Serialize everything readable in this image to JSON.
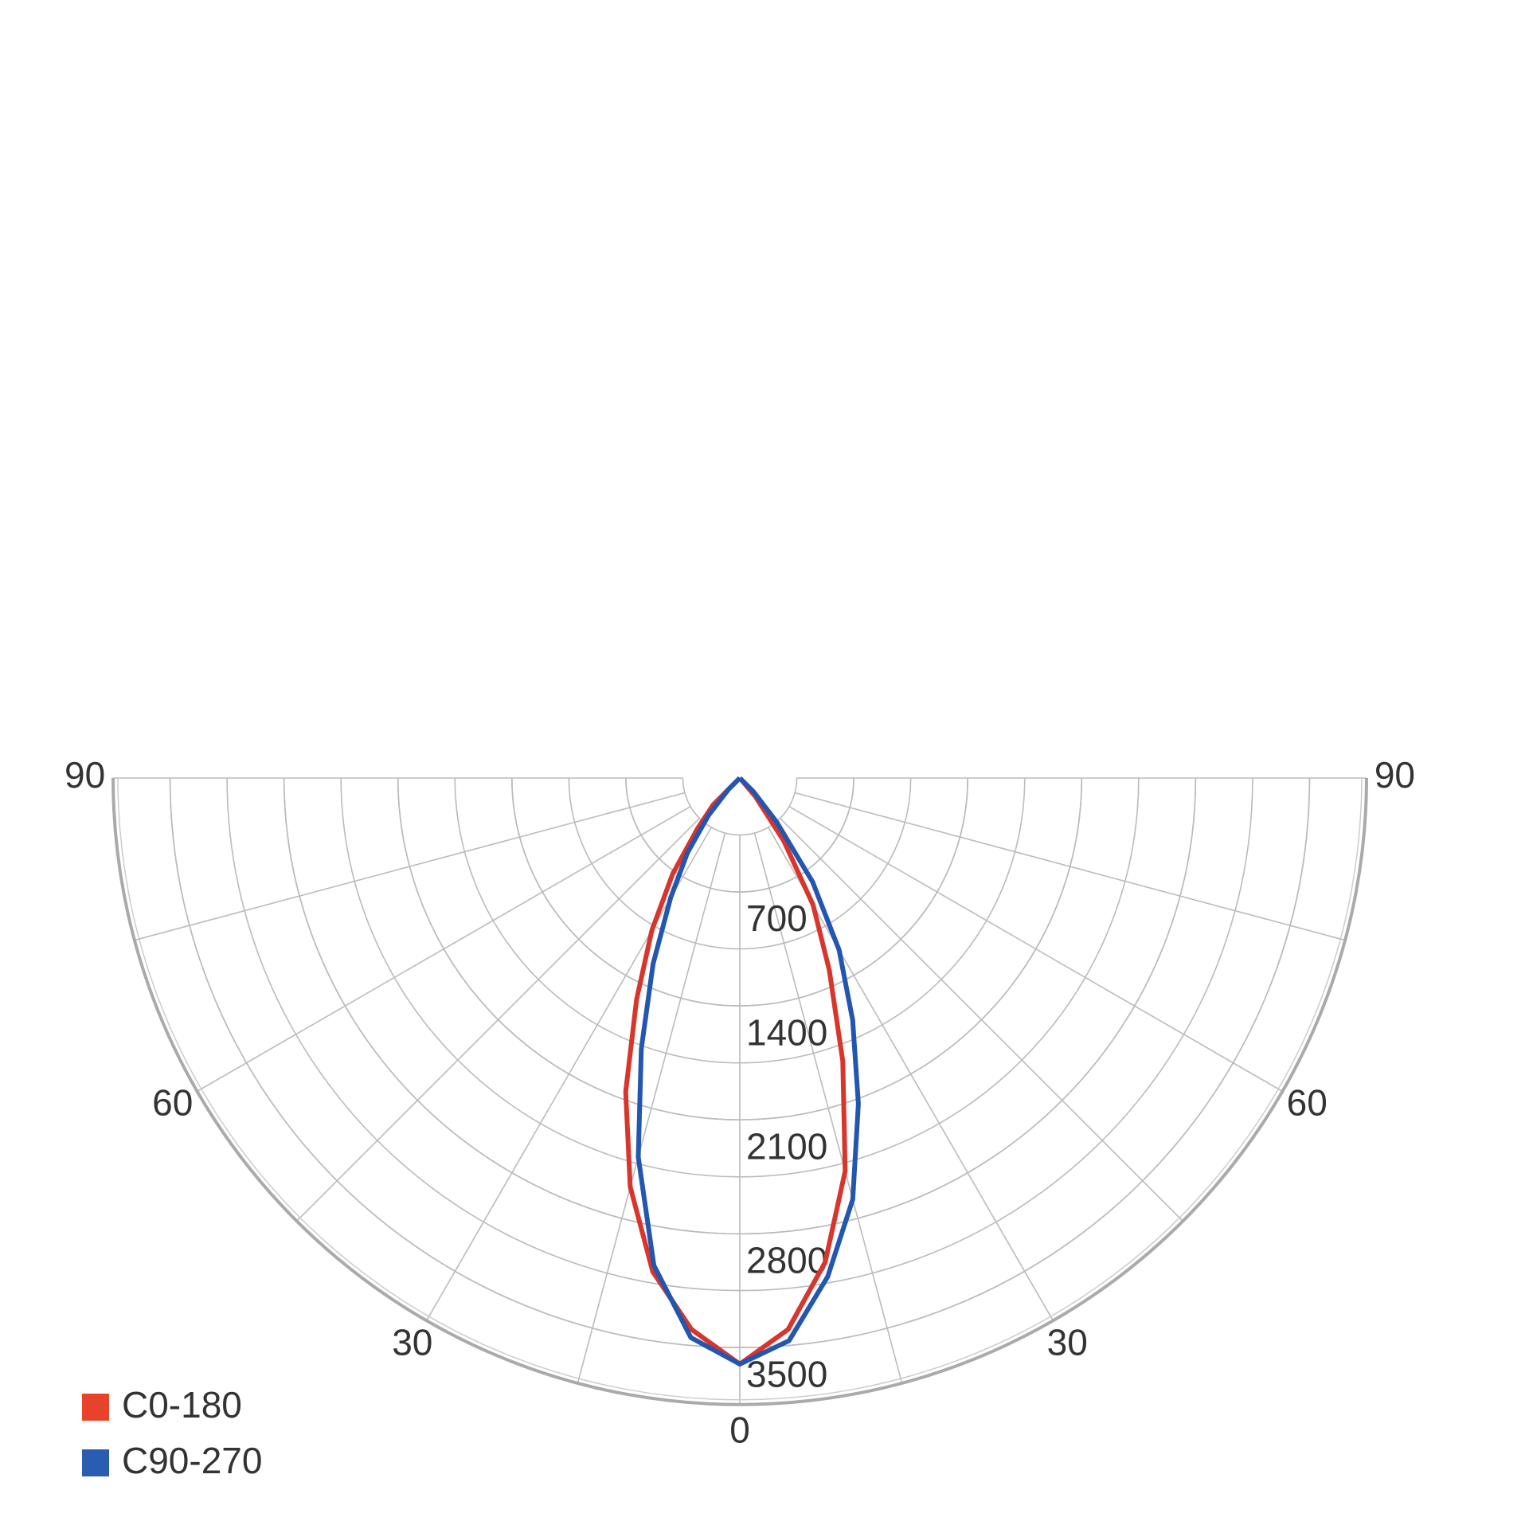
{
  "chart_data": {
    "type": "polar",
    "thetalim": [
      -90,
      90
    ],
    "thetaticks": [
      0,
      30,
      60,
      90
    ],
    "rlim": [
      0,
      3850
    ],
    "rticks": [
      700,
      1400,
      2100,
      2800,
      3500
    ],
    "grid": true,
    "legend": "lower left",
    "theta": [
      -90,
      -45,
      -40,
      -35,
      -30,
      -25,
      -20,
      -15,
      -10,
      -5,
      0,
      5,
      10,
      15,
      20,
      25,
      30,
      35,
      40,
      45,
      90
    ],
    "series": [
      {
        "name": "C0-180",
        "color": "#d8352c",
        "legend_color": "#e8412c",
        "values": [
          0,
          230,
          400,
          720,
          1080,
          1500,
          2050,
          2600,
          3080,
          3400,
          3600,
          3400,
          3020,
          2500,
          1850,
          1300,
          900,
          470,
          150,
          0,
          0
        ]
      },
      {
        "name": "C90-270",
        "color": "#2356b0",
        "legend_color": "#2a5db0",
        "values": [
          0,
          100,
          300,
          560,
          850,
          1260,
          1770,
          2410,
          3040,
          3450,
          3600,
          3470,
          3110,
          2680,
          2130,
          1640,
          1220,
          780,
          350,
          120,
          0
        ]
      }
    ]
  }
}
